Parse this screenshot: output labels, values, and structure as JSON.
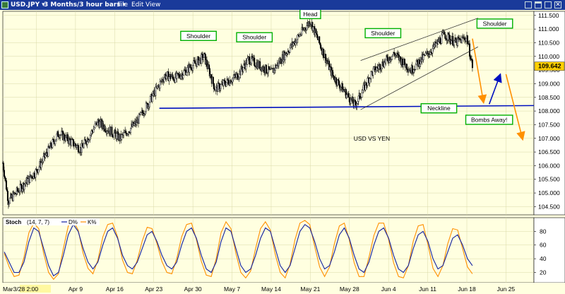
{
  "window": {
    "symbol": "USD.JPY",
    "period": "3 Months/3 hour bars",
    "menu": [
      "File",
      "Edit",
      "View"
    ],
    "title_bar_color": "#1a3a9a"
  },
  "chart_data": {
    "type": "candlestick",
    "price_panel": {
      "ylim": [
        104.2,
        111.65
      ],
      "y_ticks": [
        "104.500",
        "105.000",
        "105.500",
        "106.000",
        "106.500",
        "107.000",
        "107.500",
        "108.000",
        "108.500",
        "109.000",
        "109.500",
        "110.000",
        "110.500",
        "111.000",
        "111.500"
      ],
      "last_price": "109.642",
      "key_points": [
        {
          "date": "2018-03-27",
          "price": 106.1
        },
        {
          "date": "2018-03-28",
          "price": 104.7
        },
        {
          "date": "2018-04-02",
          "price": 105.8
        },
        {
          "date": "2018-04-06",
          "price": 107.2
        },
        {
          "date": "2018-04-10",
          "price": 106.6
        },
        {
          "date": "2018-04-13",
          "price": 107.6
        },
        {
          "date": "2018-04-17",
          "price": 107.0
        },
        {
          "date": "2018-04-20",
          "price": 107.6
        },
        {
          "date": "2018-04-25",
          "price": 109.3
        },
        {
          "date": "2018-04-27",
          "price": 109.2
        },
        {
          "date": "2018-05-02",
          "price": 110.0
        },
        {
          "date": "2018-05-04",
          "price": 108.8
        },
        {
          "date": "2018-05-08",
          "price": 109.3
        },
        {
          "date": "2018-05-10",
          "price": 109.9
        },
        {
          "date": "2018-05-14",
          "price": 109.4
        },
        {
          "date": "2018-05-21",
          "price": 111.3
        },
        {
          "date": "2018-05-25",
          "price": 109.3
        },
        {
          "date": "2018-05-29",
          "price": 108.2
        },
        {
          "date": "2018-06-01",
          "price": 109.4
        },
        {
          "date": "2018-06-05",
          "price": 110.1
        },
        {
          "date": "2018-06-08",
          "price": 109.5
        },
        {
          "date": "2018-06-12",
          "price": 110.3
        },
        {
          "date": "2018-06-14",
          "price": 110.8
        },
        {
          "date": "2018-06-16",
          "price": 110.5
        },
        {
          "date": "2018-06-18",
          "price": 110.7
        },
        {
          "date": "2018-06-19",
          "price": 109.64
        }
      ],
      "annotations": [
        {
          "text": "Head",
          "date": "2018-05-21",
          "price": 111.55
        },
        {
          "text": "Shoulder",
          "date": "2018-05-01",
          "price": 110.75
        },
        {
          "text": "Shoulder",
          "date": "2018-05-11",
          "price": 110.7
        },
        {
          "text": "Shoulder",
          "date": "2018-06-03",
          "price": 110.85
        },
        {
          "text": "Shoulder",
          "date": "2018-06-23",
          "price": 111.2
        },
        {
          "text": "Neckline",
          "date": "2018-06-13",
          "price": 108.1
        },
        {
          "text": "Bombs Away!",
          "date": "2018-06-22",
          "price": 107.68
        },
        {
          "text": "USD VS YEN",
          "date": "2018-06-01",
          "price": 107.0
        }
      ],
      "neckline": {
        "from": {
          "date": "2018-04-24",
          "price": 108.1
        },
        "to": {
          "date": "2018-06-30",
          "price": 108.2
        }
      },
      "channel_upper": {
        "from": {
          "date": "2018-05-30",
          "price": 109.85
        },
        "to": {
          "date": "2018-06-20",
          "price": 111.4
        }
      },
      "channel_lower": {
        "from": {
          "date": "2018-05-30",
          "price": 108.05
        },
        "to": {
          "date": "2018-06-20",
          "price": 110.35
        }
      },
      "projections": [
        {
          "color": "orange",
          "from": {
            "date": "2018-06-19",
            "price": 110.65
          },
          "to": {
            "date": "2018-06-21",
            "price": 108.3
          }
        },
        {
          "color": "blue",
          "from": {
            "date": "2018-06-22",
            "price": 108.25
          },
          "to": {
            "date": "2018-06-24",
            "price": 109.35
          }
        },
        {
          "color": "orange",
          "from": {
            "date": "2018-06-25",
            "price": 109.35
          },
          "to": {
            "date": "2018-06-28",
            "price": 106.95
          }
        }
      ]
    },
    "stoch_panel": {
      "label": "Stoch",
      "params": "(14, 7, 7)",
      "legend": [
        {
          "name": "D%",
          "color": "#1020a0"
        },
        {
          "name": "K%",
          "color": "#ff9000"
        }
      ],
      "ylim": [
        5,
        100
      ],
      "y_ticks": [
        "20",
        "40",
        "60",
        "80"
      ],
      "d_values": [
        50,
        35,
        20,
        20,
        35,
        65,
        85,
        80,
        55,
        30,
        15,
        20,
        45,
        75,
        90,
        80,
        55,
        35,
        25,
        35,
        60,
        80,
        85,
        70,
        45,
        30,
        25,
        35,
        55,
        75,
        80,
        65,
        45,
        30,
        25,
        35,
        60,
        80,
        85,
        70,
        45,
        25,
        20,
        35,
        65,
        85,
        80,
        55,
        30,
        20,
        25,
        45,
        70,
        85,
        80,
        55,
        30,
        20,
        30,
        55,
        80,
        90,
        85,
        65,
        40,
        25,
        30,
        50,
        75,
        85,
        70,
        45,
        25,
        20,
        35,
        60,
        80,
        85,
        70,
        45,
        25,
        20,
        30,
        55,
        75,
        80,
        65,
        40,
        25,
        30,
        50,
        70,
        75,
        60,
        40,
        30
      ],
      "k_values": [
        48,
        28,
        14,
        16,
        42,
        78,
        92,
        84,
        48,
        20,
        10,
        18,
        55,
        88,
        95,
        82,
        48,
        26,
        18,
        38,
        72,
        90,
        92,
        72,
        38,
        20,
        18,
        38,
        66,
        86,
        84,
        62,
        36,
        20,
        18,
        40,
        72,
        90,
        92,
        68,
        36,
        16,
        14,
        40,
        78,
        94,
        84,
        48,
        20,
        12,
        22,
        55,
        84,
        94,
        82,
        46,
        20,
        12,
        32,
        68,
        92,
        96,
        90,
        58,
        28,
        14,
        28,
        62,
        88,
        92,
        68,
        34,
        14,
        14,
        42,
        74,
        92,
        92,
        68,
        34,
        14,
        12,
        30,
        66,
        88,
        90,
        60,
        26,
        14,
        30,
        62,
        84,
        82,
        55,
        28,
        18
      ]
    },
    "x_axis": {
      "start_label": "Mar3/28 2:00",
      "labels": [
        "pr 2",
        "Apr 9",
        "Apr 16",
        "Apr 23",
        "Apr 30",
        "May 7",
        "May 14",
        "May 21",
        "May 28",
        "Jun 4",
        "Jun 11",
        "Jun 18",
        "Jun 25"
      ],
      "range": [
        "2018-03-27",
        "2018-06-30"
      ]
    }
  }
}
